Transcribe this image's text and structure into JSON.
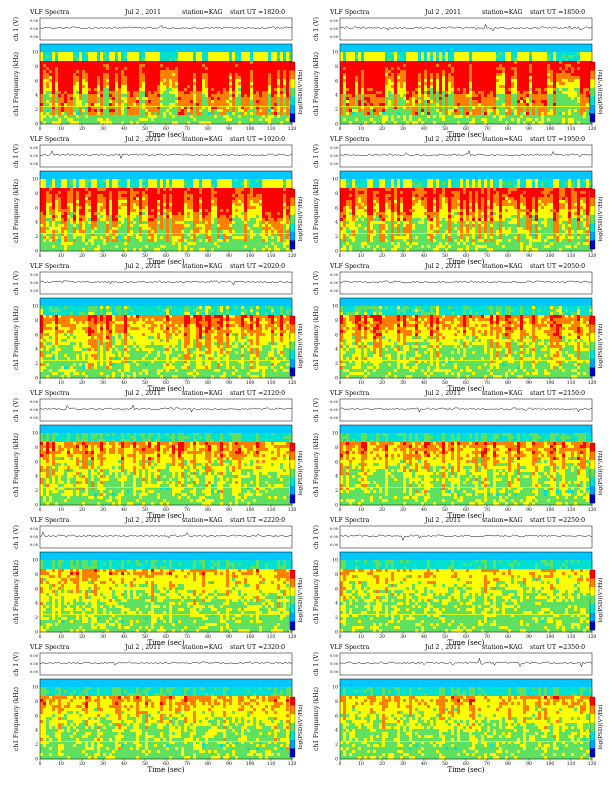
{
  "chart_data": [
    {
      "type": "heatmap",
      "header": {
        "title": "VLF Spectra",
        "date": "Jul 2 , 2011",
        "station": "station=KAG",
        "start": "start  UT  =1820:0"
      },
      "waveform_ylabel": "ch 1 (V)",
      "waveform_ticks": [
        "0.00",
        "0.00",
        "0.00"
      ],
      "ylabel": "ch1 Frequency  (kHz)",
      "xlabel": "Time  (sec)",
      "colorbar_label": "log(PSD)(V²/Hz)",
      "x_ticks": [
        "0",
        "10",
        "20",
        "30",
        "40",
        "50",
        "60",
        "70",
        "80",
        "90",
        "100",
        "110",
        "120"
      ],
      "y_ticks": [
        "0",
        "2",
        "4",
        "6",
        "8",
        "10"
      ],
      "xlim": [
        0,
        120
      ],
      "ylim": [
        0,
        10
      ],
      "colorscale": [
        "#0000c8",
        "#00a0ff",
        "#00e0d0",
        "#60e060",
        "#ffff00",
        "#ff8000",
        "#ff0000"
      ],
      "intensity": 0.95
    },
    {
      "type": "heatmap",
      "header": {
        "title": "VLF Spectra",
        "date": "Jul 2 , 2011",
        "station": "station=KAG",
        "start": "start  UT  =1850:0"
      },
      "waveform_ylabel": "ch 1 (V)",
      "waveform_ticks": [
        "0.00",
        "0.00",
        "0.00"
      ],
      "ylabel": "ch1 Frequency  (kHz)",
      "xlabel": "Time  (sec)",
      "colorbar_label": "log(PSD)(V²/Hz)",
      "x_ticks": [
        "0",
        "10",
        "20",
        "30",
        "40",
        "50",
        "60",
        "70",
        "80",
        "90",
        "100",
        "110",
        "120"
      ],
      "y_ticks": [
        "0",
        "2",
        "4",
        "6",
        "8",
        "10"
      ],
      "xlim": [
        0,
        120
      ],
      "ylim": [
        0,
        10
      ],
      "colorscale": [
        "#0000c8",
        "#00a0ff",
        "#00e0d0",
        "#60e060",
        "#ffff00",
        "#ff8000",
        "#ff0000"
      ],
      "intensity": 0.95
    },
    {
      "type": "heatmap",
      "header": {
        "title": "VLF Spectra",
        "date": "Jul 2 , 2011",
        "station": "station=KAG",
        "start": "start  UT  =1920:0"
      },
      "waveform_ylabel": "ch 1 (V)",
      "waveform_ticks": [
        "0.00",
        "0.00",
        "0.00"
      ],
      "ylabel": "ch1 Frequency  (kHz)",
      "xlabel": "Time  (sec)",
      "colorbar_label": "log(PSD)(V²/Hz)",
      "x_ticks": [
        "0",
        "10",
        "20",
        "30",
        "40",
        "50",
        "60",
        "70",
        "80",
        "90",
        "100",
        "110",
        "120"
      ],
      "y_ticks": [
        "0",
        "2",
        "4",
        "6",
        "8",
        "10"
      ],
      "xlim": [
        0,
        120
      ],
      "ylim": [
        0,
        10
      ],
      "colorscale": [
        "#0000c8",
        "#00a0ff",
        "#00e0d0",
        "#60e060",
        "#ffff00",
        "#ff8000",
        "#ff0000"
      ],
      "intensity": 0.8
    },
    {
      "type": "heatmap",
      "header": {
        "title": "VLF Spectra",
        "date": "Jul 2 , 2011",
        "station": "station=KAG",
        "start": "start  UT  =1950:0"
      },
      "waveform_ylabel": "ch 1 (V)",
      "waveform_ticks": [
        "0.00",
        "0.00",
        "0.00"
      ],
      "ylabel": "ch1 Frequency  (kHz)",
      "xlabel": "Time  (sec)",
      "colorbar_label": "log(PSD)(V²/Hz)",
      "x_ticks": [
        "0",
        "10",
        "20",
        "30",
        "40",
        "50",
        "60",
        "70",
        "80",
        "90",
        "100",
        "110",
        "120"
      ],
      "y_ticks": [
        "0",
        "2",
        "4",
        "6",
        "8",
        "10"
      ],
      "xlim": [
        0,
        120
      ],
      "ylim": [
        0,
        10
      ],
      "colorscale": [
        "#0000c8",
        "#00a0ff",
        "#00e0d0",
        "#60e060",
        "#ffff00",
        "#ff8000",
        "#ff0000"
      ],
      "intensity": 0.8
    },
    {
      "type": "heatmap",
      "header": {
        "title": "VLF Spectra",
        "date": "Jul 2 , 2011",
        "station": "station=KAG",
        "start": "start  UT  =2020:0"
      },
      "waveform_ylabel": "ch 1 (V)",
      "waveform_ticks": [
        "0.00",
        "0.00",
        "0.00"
      ],
      "ylabel": "ch1 Frequency  (kHz)",
      "xlabel": "Time  (sec)",
      "colorbar_label": "log(PSD)(V²/Hz)",
      "x_ticks": [
        "0",
        "10",
        "20",
        "30",
        "40",
        "50",
        "60",
        "70",
        "80",
        "90",
        "100",
        "110",
        "120"
      ],
      "y_ticks": [
        "0",
        "2",
        "4",
        "6",
        "8",
        "10"
      ],
      "xlim": [
        0,
        120
      ],
      "ylim": [
        0,
        10
      ],
      "colorscale": [
        "#0000c8",
        "#00a0ff",
        "#00e0d0",
        "#60e060",
        "#ffff00",
        "#ff8000",
        "#ff0000"
      ],
      "intensity": 0.55
    },
    {
      "type": "heatmap",
      "header": {
        "title": "VLF Spectra",
        "date": "Jul 2 , 2011",
        "station": "station=KAG",
        "start": "start  UT  =2050:0"
      },
      "waveform_ylabel": "ch 1 (V)",
      "waveform_ticks": [
        "0.00",
        "0.00",
        "0.00"
      ],
      "ylabel": "ch1 Frequency  (kHz)",
      "xlabel": "Time  (sec)",
      "colorbar_label": "log(PSD)(V²/Hz)",
      "x_ticks": [
        "0",
        "10",
        "20",
        "30",
        "40",
        "50",
        "60",
        "70",
        "80",
        "90",
        "100",
        "110",
        "120"
      ],
      "y_ticks": [
        "0",
        "2",
        "4",
        "6",
        "8",
        "10"
      ],
      "xlim": [
        0,
        120
      ],
      "ylim": [
        0,
        10
      ],
      "colorscale": [
        "#0000c8",
        "#00a0ff",
        "#00e0d0",
        "#60e060",
        "#ffff00",
        "#ff8000",
        "#ff0000"
      ],
      "intensity": 0.55
    },
    {
      "type": "heatmap",
      "header": {
        "title": "VLF Spectra",
        "date": "Jul 2 , 2011",
        "station": "station=KAG",
        "start": "start  UT  =2120:0"
      },
      "waveform_ylabel": "ch 1 (V)",
      "waveform_ticks": [
        "0.00",
        "0.00",
        "0.00"
      ],
      "ylabel": "ch1 Frequency  (kHz)",
      "xlabel": "Time  (sec)",
      "colorbar_label": "log(PSD)(V²/Hz)",
      "x_ticks": [
        "0",
        "10",
        "20",
        "30",
        "40",
        "50",
        "60",
        "70",
        "80",
        "90",
        "100",
        "110",
        "120"
      ],
      "y_ticks": [
        "0",
        "2",
        "4",
        "6",
        "8",
        "10"
      ],
      "xlim": [
        0,
        120
      ],
      "ylim": [
        0,
        10
      ],
      "colorscale": [
        "#0000c8",
        "#00a0ff",
        "#00e0d0",
        "#60e060",
        "#ffff00",
        "#ff8000",
        "#ff0000"
      ],
      "intensity": 0.45
    },
    {
      "type": "heatmap",
      "header": {
        "title": "VLF Spectra",
        "date": "Jul 2 , 2011",
        "station": "station=KAG",
        "start": "start  UT  =2150:0"
      },
      "waveform_ylabel": "ch 1 (V)",
      "waveform_ticks": [
        "0.00",
        "0.00",
        "0.00"
      ],
      "ylabel": "ch1 Frequency  (kHz)",
      "xlabel": "Time  (sec)",
      "colorbar_label": "log(PSD)(V²/Hz)",
      "x_ticks": [
        "0",
        "10",
        "20",
        "30",
        "40",
        "50",
        "60",
        "70",
        "80",
        "90",
        "100",
        "110",
        "120"
      ],
      "y_ticks": [
        "0",
        "2",
        "4",
        "6",
        "8",
        "10"
      ],
      "xlim": [
        0,
        120
      ],
      "ylim": [
        0,
        10
      ],
      "colorscale": [
        "#0000c8",
        "#00a0ff",
        "#00e0d0",
        "#60e060",
        "#ffff00",
        "#ff8000",
        "#ff0000"
      ],
      "intensity": 0.45
    },
    {
      "type": "heatmap",
      "header": {
        "title": "VLF Spectra",
        "date": "Jul 2 , 2011",
        "station": "station=KAG",
        "start": "start  UT  =2220:0"
      },
      "waveform_ylabel": "ch 1 (V)",
      "waveform_ticks": [
        "0.00",
        "0.00",
        "0.00"
      ],
      "ylabel": "ch1 Frequency  (kHz)",
      "xlabel": "Time  (sec)",
      "colorbar_label": "log(PSD)(V²/Hz)",
      "x_ticks": [
        "0",
        "10",
        "20",
        "30",
        "40",
        "50",
        "60",
        "70",
        "80",
        "90",
        "100",
        "110",
        "120"
      ],
      "y_ticks": [
        "0",
        "2",
        "4",
        "6",
        "8",
        "10"
      ],
      "xlim": [
        0,
        120
      ],
      "ylim": [
        0,
        10
      ],
      "colorscale": [
        "#0000c8",
        "#00a0ff",
        "#00e0d0",
        "#60e060",
        "#ffff00",
        "#ff8000",
        "#ff0000"
      ],
      "intensity": 0.35
    },
    {
      "type": "heatmap",
      "header": {
        "title": "VLF Spectra",
        "date": "Jul 2 , 2011",
        "station": "station=KAG",
        "start": "start  UT  =2250:0"
      },
      "waveform_ylabel": "ch 1 (V)",
      "waveform_ticks": [
        "0.00",
        "0.00",
        "0.00"
      ],
      "ylabel": "ch1 Frequency  (kHz)",
      "xlabel": "Time  (sec)",
      "colorbar_label": "log(PSD)(V²/Hz)",
      "x_ticks": [
        "0",
        "10",
        "20",
        "30",
        "40",
        "50",
        "60",
        "70",
        "80",
        "90",
        "100",
        "110",
        "120"
      ],
      "y_ticks": [
        "0",
        "2",
        "4",
        "6",
        "8",
        "10"
      ],
      "xlim": [
        0,
        120
      ],
      "ylim": [
        0,
        10
      ],
      "colorscale": [
        "#0000c8",
        "#00a0ff",
        "#00e0d0",
        "#60e060",
        "#ffff00",
        "#ff8000",
        "#ff0000"
      ],
      "intensity": 0.3
    },
    {
      "type": "heatmap",
      "header": {
        "title": "VLF Spectra",
        "date": "Jul 2 , 2011",
        "station": "station=KAG",
        "start": "start  UT  =2320:0"
      },
      "waveform_ylabel": "ch 1 (V)",
      "waveform_ticks": [
        "0.00",
        "0.00",
        "0.00"
      ],
      "ylabel": "ch1 Frequency  (kHz)",
      "xlabel": "Time  (sec)",
      "colorbar_label": "log(PSD)(V²/Hz)",
      "x_ticks": [
        "0",
        "10",
        "20",
        "30",
        "40",
        "50",
        "60",
        "70",
        "80",
        "90",
        "100",
        "110",
        "120"
      ],
      "y_ticks": [
        "0",
        "2",
        "4",
        "6",
        "8",
        "10"
      ],
      "xlim": [
        0,
        120
      ],
      "ylim": [
        0,
        10
      ],
      "colorscale": [
        "#0000c8",
        "#00a0ff",
        "#00e0d0",
        "#60e060",
        "#ffff00",
        "#ff8000",
        "#ff0000"
      ],
      "intensity": 0.4
    },
    {
      "type": "heatmap",
      "header": {
        "title": "VLF Spectra",
        "date": "Jul 2 , 2011",
        "station": "station=KAG",
        "start": "start  UT  =2350:0"
      },
      "waveform_ylabel": "ch 1 (V)",
      "waveform_ticks": [
        "0.00",
        "0.00",
        "0.00"
      ],
      "ylabel": "ch1 Frequency  (kHz)",
      "xlabel": "Time  (sec)",
      "colorbar_label": "log(PSD)(V²/Hz)",
      "x_ticks": [
        "0",
        "10",
        "20",
        "30",
        "40",
        "50",
        "60",
        "70",
        "80",
        "90",
        "100",
        "110",
        "120"
      ],
      "y_ticks": [
        "0",
        "2",
        "4",
        "6",
        "8",
        "10"
      ],
      "xlim": [
        0,
        120
      ],
      "ylim": [
        0,
        10
      ],
      "colorscale": [
        "#0000c8",
        "#00a0ff",
        "#00e0d0",
        "#60e060",
        "#ffff00",
        "#ff8000",
        "#ff0000"
      ],
      "intensity": 0.35
    }
  ]
}
